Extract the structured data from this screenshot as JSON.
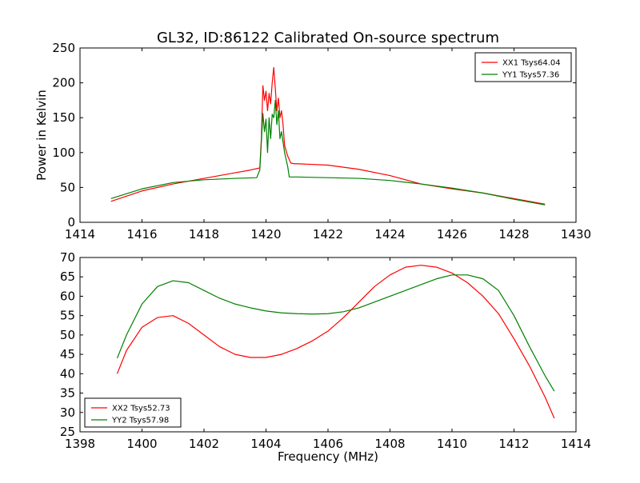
{
  "figure": {
    "title": "GL32, ID:86122 Calibrated On-source spectrum"
  },
  "chart_data": [
    {
      "type": "line",
      "title": "GL32, ID:86122 Calibrated On-source spectrum",
      "xlabel": "",
      "ylabel": "Power in Kelvin",
      "xlim": [
        1414,
        1430
      ],
      "ylim": [
        0,
        250
      ],
      "xticks": [
        1414,
        1416,
        1418,
        1420,
        1422,
        1424,
        1426,
        1428,
        1430
      ],
      "yticks": [
        0,
        50,
        100,
        150,
        200,
        250
      ],
      "grid": false,
      "legend_position": "top-right",
      "series": [
        {
          "name": "XX1 Tsys64.04",
          "color": "#ff0000",
          "x": [
            1415.0,
            1416.0,
            1417.0,
            1418.0,
            1418.5,
            1419.0,
            1419.5,
            1419.8,
            1419.85,
            1419.9,
            1419.95,
            1420.0,
            1420.05,
            1420.1,
            1420.15,
            1420.2,
            1420.25,
            1420.3,
            1420.35,
            1420.4,
            1420.45,
            1420.5,
            1420.55,
            1420.6,
            1420.7,
            1420.8,
            1420.9,
            1421.0,
            1422.0,
            1423.0,
            1424.0,
            1425.0,
            1426.0,
            1427.0,
            1428.0,
            1429.0
          ],
          "y": [
            30,
            45,
            55,
            63,
            67,
            71,
            75,
            78,
            120,
            196,
            175,
            188,
            160,
            185,
            170,
            200,
            222,
            192,
            160,
            178,
            150,
            160,
            140,
            110,
            95,
            85,
            84,
            84,
            82,
            76,
            67,
            55,
            48,
            42,
            34,
            26
          ]
        },
        {
          "name": "YY1 Tsys57.36",
          "color": "#008000",
          "x": [
            1415.0,
            1416.0,
            1417.0,
            1418.0,
            1419.0,
            1419.7,
            1419.8,
            1419.85,
            1419.9,
            1419.95,
            1420.0,
            1420.05,
            1420.1,
            1420.15,
            1420.2,
            1420.25,
            1420.3,
            1420.35,
            1420.4,
            1420.45,
            1420.5,
            1420.6,
            1420.7,
            1420.75,
            1420.8,
            1421.0,
            1422.0,
            1423.0,
            1424.0,
            1425.0,
            1426.0,
            1427.0,
            1428.0,
            1429.0
          ],
          "y": [
            34,
            48,
            57,
            61,
            63,
            64,
            75,
            115,
            156,
            130,
            148,
            100,
            150,
            120,
            155,
            150,
            175,
            140,
            160,
            120,
            130,
            100,
            80,
            65,
            65,
            65,
            64,
            63,
            60,
            55,
            49,
            42,
            33,
            25
          ]
        }
      ]
    },
    {
      "type": "line",
      "title": "",
      "xlabel": "Frequency (MHz)",
      "ylabel": "",
      "xlim": [
        1398,
        1414
      ],
      "ylim": [
        25,
        70
      ],
      "xticks": [
        1398,
        1400,
        1402,
        1404,
        1406,
        1408,
        1410,
        1412,
        1414
      ],
      "yticks": [
        25,
        30,
        35,
        40,
        45,
        50,
        55,
        60,
        65,
        70
      ],
      "grid": false,
      "legend_position": "bottom-left",
      "series": [
        {
          "name": "XX2 Tsys52.73",
          "color": "#ff0000",
          "x": [
            1399.2,
            1399.5,
            1400.0,
            1400.5,
            1401.0,
            1401.5,
            1402.0,
            1402.5,
            1403.0,
            1403.5,
            1404.0,
            1404.5,
            1405.0,
            1405.5,
            1406.0,
            1406.5,
            1407.0,
            1407.5,
            1408.0,
            1408.5,
            1409.0,
            1409.5,
            1410.0,
            1410.5,
            1411.0,
            1411.5,
            1412.0,
            1412.5,
            1413.0,
            1413.3
          ],
          "y": [
            40,
            46,
            52,
            54.5,
            55,
            53,
            50,
            47,
            45,
            44.2,
            44.2,
            45,
            46.5,
            48.5,
            51,
            54.5,
            58.5,
            62.5,
            65.5,
            67.5,
            68,
            67.5,
            66,
            63.5,
            60,
            55.5,
            49,
            42,
            34,
            28.5
          ]
        },
        {
          "name": "YY2 Tsys57.98",
          "color": "#008000",
          "x": [
            1399.2,
            1399.5,
            1400.0,
            1400.5,
            1401.0,
            1401.5,
            1402.0,
            1402.5,
            1403.0,
            1403.5,
            1404.0,
            1404.5,
            1405.0,
            1405.5,
            1406.0,
            1406.5,
            1407.0,
            1407.5,
            1408.0,
            1408.5,
            1409.0,
            1409.5,
            1410.0,
            1410.5,
            1411.0,
            1411.5,
            1412.0,
            1412.5,
            1413.0,
            1413.3
          ],
          "y": [
            44,
            50,
            58,
            62.5,
            64,
            63.5,
            61.5,
            59.5,
            58,
            57,
            56.2,
            55.7,
            55.5,
            55.4,
            55.5,
            56,
            57,
            58.5,
            60,
            61.5,
            63,
            64.5,
            65.5,
            65.5,
            64.5,
            61.5,
            55,
            47,
            39.5,
            35.5
          ]
        }
      ]
    }
  ]
}
